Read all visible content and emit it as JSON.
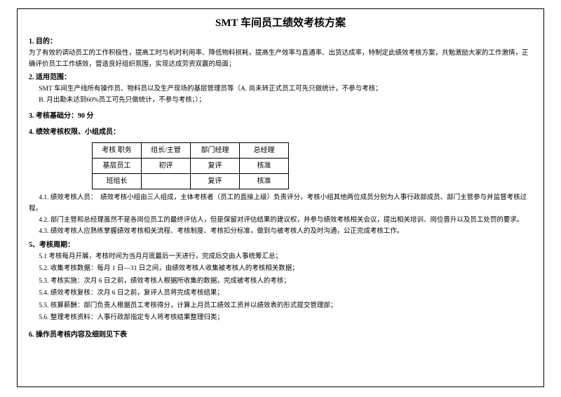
{
  "title": "SMT 车间员工绩效考核方案",
  "sections": {
    "s1": {
      "header": "1. 目的：",
      "body": "为了有效的调动员工的工作积极性，提高工时与机时利用率、降低物料损耗，提高生产效率与直通率、出货达成率，特制定此绩效考核方案，共勉激励大家的工作激情，正确评价员工工作绩效，营造良好组织氛围，实现达成劳资双赢的局面；"
    },
    "s2": {
      "header": "2. 适用范围：",
      "line1": "SMT 车间生产线所有操作员、物料员以及生产现场的基层管理员等（A. 尚未转正式员工可先只做统计，不参与考核；",
      "line2": "B. 月出勤未达到60%员工可先只做统计，不参与考核；）；"
    },
    "s3": {
      "header": "3. 考核基础分：90 分"
    },
    "s4": {
      "header": "4. 绩效考核权限、小组成员：",
      "table": {
        "headers": [
          "考核 职务",
          "组长/主管",
          "部门经理",
          "总经理"
        ],
        "rows": [
          [
            "基层员工",
            "初评",
            "复评",
            "核准"
          ],
          [
            "班组长",
            "",
            "复评",
            "核准"
          ]
        ]
      },
      "p41": "4.1. 绩效考核人员：　绩效考核小组由三人组成，主体考核者（员工的直接上级）负责评分，考核小组其他两位成员分别为人事行政部成员、部门主管参与并监督考核过程。",
      "p42": "4.2. 部门主管和总经理虽然不是各岗位员工的最终评估人，但是保留对评估结果的建议权，并参与绩效考核相关会议，提出相关培训、岗位晋升以及员工处罚的要求。",
      "p43": "4.3. 绩效考核人应熟练掌握绩效考核相关流程、考核制度、考核扣分标准，做到与被考核人的及时沟通，公正完成考核工作。"
    },
    "s5": {
      "header": "5、考核周期：",
      "items": [
        "5.1 考核每月开展，考核时间为当月月底最后一天进行，完成后交由人事统筹汇总；",
        "5.2. 收集考核数据：每月 1 日—31 日之间，由绩效考核人收集被考核人的考核相关数据；",
        "5.3. 考核实施：次月 6 日之前，绩效考核人根据所收集的数据，完成被考核人的考核；",
        "5.4. 绩效考核复核：次月 6 日之前，复评人员将完成考核结果；",
        "5.5. 核算薪酬：部门负责人根据员工考核得分，计算上月员工绩效工资并以绩效表的形式提交管理部；",
        "5.6. 整理考核资料：人事行政部指定专人将考核结果整理归类；"
      ]
    },
    "s6": {
      "header": "6. 操作员考核内容及细则见下表"
    }
  }
}
